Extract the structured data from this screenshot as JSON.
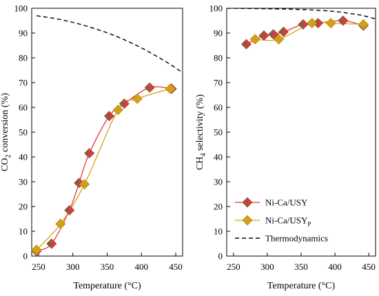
{
  "chart_data": [
    {
      "type": "line",
      "xlabel": "Temperature (°C)",
      "ylabel_main": "CO",
      "ylabel_sub": "2",
      "ylabel_rest": " conversion (%)",
      "xlim": [
        240,
        460
      ],
      "ylim": [
        0,
        100
      ],
      "xticks": [
        250,
        300,
        350,
        400,
        450
      ],
      "yticks": [
        0,
        10,
        20,
        30,
        40,
        50,
        60,
        70,
        80,
        90,
        100
      ],
      "series": [
        {
          "key": "nica",
          "color": "#e8333a",
          "marker_dark": "#8b5a3c",
          "x": [
            247,
            269,
            295,
            309,
            324,
            353,
            375,
            412,
            444
          ],
          "y": [
            2,
            5,
            18.5,
            29.5,
            41.5,
            56.5,
            61.5,
            68,
            67.5
          ]
        },
        {
          "key": "nicap",
          "color": "#d4a017",
          "x": [
            247,
            282,
            317,
            366,
            394,
            442
          ],
          "y": [
            2.5,
            13,
            29,
            59,
            63.5,
            67.5
          ]
        },
        {
          "key": "thermo",
          "color": "#000000",
          "dashed": true,
          "x": [
            247,
            275,
            300,
            325,
            350,
            375,
            400,
            425,
            445,
            460
          ],
          "y": [
            97,
            95.8,
            94.3,
            92.4,
            90.1,
            87.3,
            84,
            80.2,
            76.8,
            74
          ]
        }
      ]
    },
    {
      "type": "line",
      "xlabel": "Temperature (°C)",
      "ylabel_main": "CH",
      "ylabel_sub": "4",
      "ylabel_rest": " selectivity (%)",
      "xlim": [
        240,
        460
      ],
      "ylim": [
        0,
        100
      ],
      "xticks": [
        250,
        300,
        350,
        400,
        450
      ],
      "yticks": [
        0,
        10,
        20,
        30,
        40,
        50,
        60,
        70,
        80,
        90,
        100
      ],
      "legend": {
        "position": "lower-left",
        "entries": [
          {
            "key": "nica",
            "label": "Ni-Ca/USY",
            "sub": ""
          },
          {
            "key": "nicap",
            "label": "Ni-Ca/USY",
            "sub": "P"
          },
          {
            "key": "thermo",
            "label": "Thermodynamics",
            "sub": ""
          }
        ]
      },
      "series": [
        {
          "key": "nica",
          "color": "#e8333a",
          "marker_dark": "#8b5a3c",
          "x": [
            269,
            295,
            309,
            324,
            353,
            375,
            412,
            442
          ],
          "y": [
            85.5,
            89,
            89.5,
            90.5,
            93.5,
            94,
            95,
            93
          ]
        },
        {
          "key": "nicap",
          "color": "#d4a017",
          "x": [
            282,
            317,
            366,
            394,
            442
          ],
          "y": [
            87.5,
            87.5,
            94,
            94,
            93.5
          ]
        },
        {
          "key": "thermo",
          "color": "#000000",
          "dashed": true,
          "x": [
            240,
            300,
            350,
            380,
            400,
            420,
            440,
            460
          ],
          "y": [
            100,
            99.8,
            99.5,
            99.1,
            98.7,
            98,
            97.1,
            95.7
          ]
        }
      ]
    }
  ]
}
